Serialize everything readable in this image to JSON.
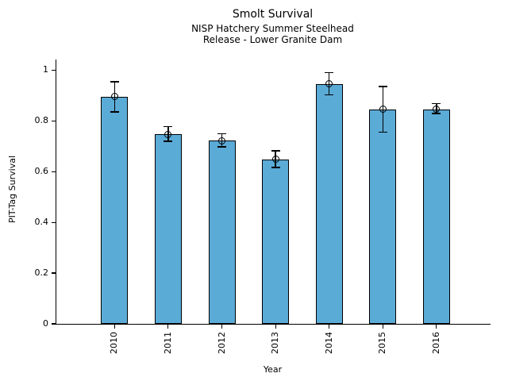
{
  "chart_data": {
    "type": "bar",
    "title": "Smolt Survival",
    "subtitle1": "NISP Hatchery Summer Steelhead",
    "subtitle2": "Release - Lower Granite Dam",
    "xlabel": "Year",
    "ylabel": "PIT-Tag Survival",
    "categories": [
      "2010",
      "2011",
      "2012",
      "2013",
      "2014",
      "2015",
      "2016"
    ],
    "values": [
      0.895,
      0.747,
      0.722,
      0.648,
      0.945,
      0.845,
      0.845
    ],
    "error_low": [
      0.835,
      0.72,
      0.698,
      0.616,
      0.903,
      0.755,
      0.83
    ],
    "error_high": [
      0.955,
      0.777,
      0.75,
      0.682,
      0.99,
      0.935,
      0.868
    ],
    "y_ticks": [
      0,
      0.2,
      0.4,
      0.6,
      0.8,
      1
    ],
    "y_tick_labels": [
      "0",
      "0.2",
      "0.4",
      "0.6",
      "0.8",
      "1"
    ],
    "ylim": [
      0,
      1.042
    ],
    "bar_color": "#5babd7",
    "bar_edge_color": "#000000",
    "error_color": "#000000",
    "grid": false,
    "legend_position": "none"
  }
}
